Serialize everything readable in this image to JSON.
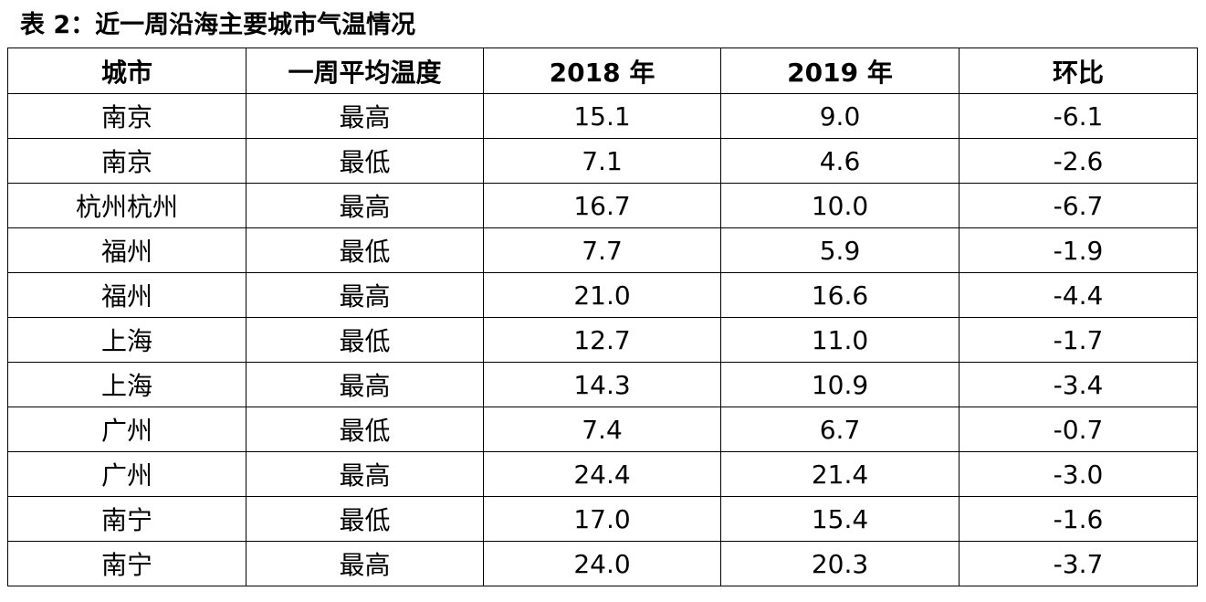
{
  "chart_data": {
    "type": "table",
    "title": "表 2：近一周沿海主要城市气温情况",
    "columns": [
      "城市",
      "一周平均温度",
      "2018 年",
      "2019 年",
      "环比"
    ],
    "rows": [
      [
        "南京",
        "最高",
        "15.1",
        "9.0",
        "-6.1"
      ],
      [
        "南京",
        "最低",
        "7.1",
        "4.6",
        "-2.6"
      ],
      [
        "杭州杭州",
        "最高",
        "16.7",
        "10.0",
        "-6.7"
      ],
      [
        "福州",
        "最低",
        "7.7",
        "5.9",
        "-1.9"
      ],
      [
        "福州",
        "最高",
        "21.0",
        "16.6",
        "-4.4"
      ],
      [
        "上海",
        "最低",
        "12.7",
        "11.0",
        "-1.7"
      ],
      [
        "上海",
        "最高",
        "14.3",
        "10.9",
        "-3.4"
      ],
      [
        "广州",
        "最低",
        "7.4",
        "6.7",
        "-0.7"
      ],
      [
        "广州",
        "最高",
        "24.4",
        "21.4",
        "-3.0"
      ],
      [
        "南宁",
        "最低",
        "17.0",
        "15.4",
        "-1.6"
      ],
      [
        "南宁",
        "最高",
        "24.0",
        "20.3",
        "-3.7"
      ]
    ]
  }
}
